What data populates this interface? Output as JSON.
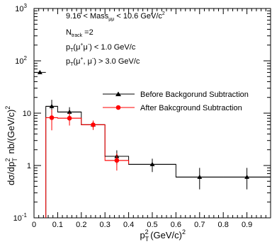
{
  "chart_data": {
    "type": "scatter",
    "yscale": "log",
    "xlim": [
      0,
      1.0
    ],
    "ylim": [
      0.1,
      1000
    ],
    "x_ticks": [
      "0",
      "0.1",
      "0.2",
      "0.3",
      "0.4",
      "0.5",
      "0.6",
      "0.7",
      "0.8",
      "0.9"
    ],
    "x_tick_values": [
      0,
      0.1,
      0.2,
      0.3,
      0.4,
      0.5,
      0.6,
      0.7,
      0.8,
      0.9
    ],
    "y_ticks": [
      {
        "base": "10",
        "exp": "-1",
        "value": 0.1
      },
      {
        "base": "1",
        "exp": "",
        "value": 1
      },
      {
        "base": "10",
        "exp": "",
        "value": 10
      },
      {
        "base": "10",
        "exp": "2",
        "value": 100
      },
      {
        "base": "10",
        "exp": "3",
        "value": 1000
      }
    ],
    "xlabel": {
      "p": "p",
      "sub": "T",
      "sup": "2",
      "unit": "(GeV/c)",
      "unit_sup": "2"
    },
    "ylabel": {
      "d1": "dσ/dp",
      "sub": "T",
      "sup": "2",
      "rest": " nb/(GeV/c)",
      "rest_sup": "2"
    },
    "annotations": {
      "line1": {
        "a": "9.16 < Mass",
        "sub": "μμ",
        "b": " < 10.6 GeV/c",
        "sup": "2"
      },
      "line2": {
        "a": "N",
        "sub": "track",
        "b": " =2"
      },
      "line3": {
        "a": "p",
        "sub": "T",
        "b": "(μ",
        "sup1": "+",
        "c": "μ",
        "sup2": "-",
        "d": ") < 1.0 GeV/c"
      },
      "line4": {
        "a": "p",
        "sub": "T",
        "b": "(μ",
        "sup1": "+",
        "c": ", μ",
        "sup2": "-",
        "d": ") > 3.0 GeV/c"
      }
    },
    "series": [
      {
        "name": "Before Backgorund Subtraction",
        "color": "#000000",
        "marker": "triangle",
        "x": [
          0.025,
          0.075,
          0.15,
          0.25,
          0.35,
          0.5,
          0.7,
          0.9
        ],
        "y": [
          60,
          13.5,
          10.5,
          6.0,
          1.5,
          1.05,
          0.6,
          0.6
        ],
        "xerr": [
          0.025,
          0.025,
          0.05,
          0.05,
          0.05,
          0.1,
          0.1,
          0.1
        ],
        "yerr_low": [
          0,
          4.5,
          2.5,
          1.2,
          0.45,
          0.3,
          0.25,
          0.25
        ],
        "yerr_high": [
          0,
          4.5,
          2.5,
          1.2,
          0.45,
          0.3,
          0.3,
          0.3
        ]
      },
      {
        "name": "After Bakcground Subtraction",
        "color": "#ff0000",
        "marker": "circle",
        "x": [
          0.075,
          0.15,
          0.25,
          0.35
        ],
        "y": [
          8.2,
          8.0,
          6.0,
          1.25
        ],
        "xerr": [
          0.025,
          0.05,
          0.05,
          0.05
        ],
        "yerr_low": [
          3.5,
          2.2,
          1.2,
          0.45
        ],
        "yerr_high": [
          3.5,
          2.2,
          1.2,
          0.45
        ]
      }
    ],
    "histograms": [
      {
        "series": 0,
        "edges": [
          0.05,
          0.1,
          0.2,
          0.3,
          0.4,
          0.6,
          0.8,
          1.0
        ],
        "values": [
          13.5,
          10.5,
          6.0,
          1.5,
          1.05,
          0.6,
          0.6
        ]
      },
      {
        "series": 1,
        "edges": [
          0.05,
          0.1,
          0.2,
          0.3,
          0.4
        ],
        "values": [
          8.2,
          8.0,
          6.0,
          1.25
        ]
      }
    ]
  }
}
